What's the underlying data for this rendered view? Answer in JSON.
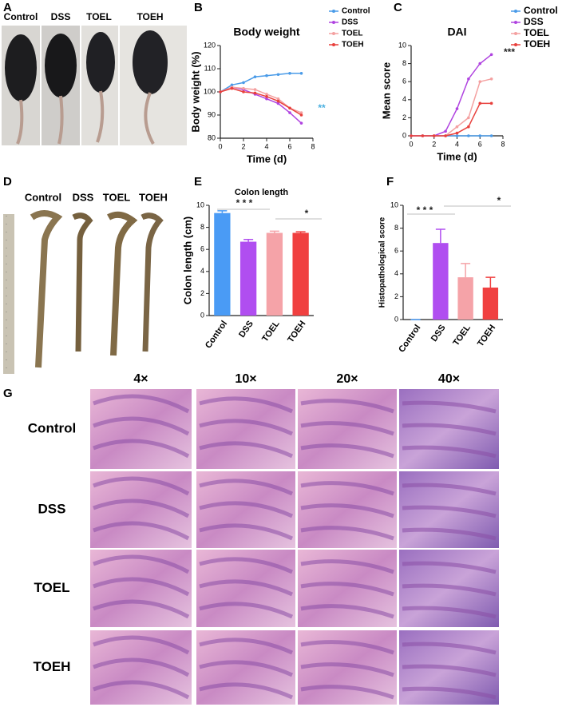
{
  "panel_labels": [
    "A",
    "B",
    "C",
    "D",
    "E",
    "F",
    "G"
  ],
  "panel_a": {
    "labels": [
      "Control",
      "DSS",
      "TOEL",
      "TOEH"
    ]
  },
  "panel_d": {
    "labels": [
      "Control",
      "DSS",
      "TOEL",
      "TOEH"
    ]
  },
  "panel_g": {
    "columns": [
      "4×",
      "10×",
      "20×",
      "40×"
    ],
    "rows": [
      "Control",
      "DSS",
      "TOEL",
      "TOEH"
    ]
  },
  "chart_data": [
    {
      "type": "line",
      "title": "Body weight",
      "x_label": "Time (d)",
      "y_label": "Body weight (%)",
      "x": [
        0,
        1,
        2,
        3,
        4,
        5,
        6,
        7
      ],
      "series": [
        {
          "name": "Control",
          "color": "#4a9be8",
          "values": [
            100,
            103,
            104,
            106.5,
            107,
            107.5,
            108,
            108
          ]
        },
        {
          "name": "DSS",
          "color": "#b044e0",
          "values": [
            100,
            102,
            101,
            99,
            97,
            95,
            91,
            86.5
          ]
        },
        {
          "name": "TOEL",
          "color": "#f4a0a0",
          "values": [
            100,
            102,
            101.5,
            101,
            99,
            97,
            93,
            91
          ]
        },
        {
          "name": "TOEH",
          "color": "#e8403c",
          "values": [
            100,
            101.5,
            100,
            99.5,
            98,
            96,
            93,
            90
          ]
        }
      ],
      "xlim": [
        0,
        8
      ],
      "xticks": [
        0,
        2,
        4,
        6,
        8
      ],
      "ylim": [
        80,
        120
      ],
      "yticks": [
        80,
        90,
        100,
        110,
        120
      ],
      "annotations": [
        "**"
      ]
    },
    {
      "type": "line",
      "title": "DAI",
      "x_label": "Time (d)",
      "y_label": "Mean score",
      "x": [
        0,
        1,
        2,
        3,
        4,
        5,
        6,
        7
      ],
      "series": [
        {
          "name": "Control",
          "color": "#4a9be8",
          "values": [
            0,
            0,
            0,
            0,
            0,
            0,
            0,
            0
          ]
        },
        {
          "name": "DSS",
          "color": "#b044e0",
          "values": [
            0,
            0,
            0,
            0.5,
            3,
            6.3,
            8,
            9
          ]
        },
        {
          "name": "TOEL",
          "color": "#f4a0a0",
          "values": [
            0,
            0,
            0,
            0,
            1,
            2,
            6,
            6.3
          ]
        },
        {
          "name": "TOEH",
          "color": "#e8403c",
          "values": [
            0,
            0,
            0,
            0,
            0.3,
            1,
            3.6,
            3.6
          ]
        }
      ],
      "xlim": [
        0,
        8
      ],
      "xticks": [
        0,
        2,
        4,
        6,
        8
      ],
      "ylim": [
        0,
        10
      ],
      "yticks": [
        0,
        2,
        4,
        6,
        8,
        10
      ],
      "annotations": [
        "***"
      ]
    },
    {
      "type": "bar",
      "title": "Colon length",
      "y_label": "Colon length (cm)",
      "categories": [
        "Control",
        "DSS",
        "TOEL",
        "TOEH"
      ],
      "values": [
        9.3,
        6.7,
        7.5,
        7.5
      ],
      "errors": [
        0.2,
        0.2,
        0.15,
        0.1
      ],
      "colors": [
        "#4a9bf5",
        "#b04ef0",
        "#f5a3a8",
        "#f04040"
      ],
      "ylim": [
        0,
        10
      ],
      "yticks": [
        0,
        2,
        4,
        6,
        8,
        10
      ],
      "annotations": [
        "* * *",
        "*"
      ]
    },
    {
      "type": "bar",
      "y_label": "Histopathological score",
      "categories": [
        "Control",
        "DSS",
        "TOEL",
        "TOEH"
      ],
      "values": [
        0,
        6.7,
        3.7,
        2.8
      ],
      "errors": [
        0,
        1.2,
        1.2,
        0.9
      ],
      "colors": [
        "#4a9bf5",
        "#b04ef0",
        "#f5a3a8",
        "#f04040"
      ],
      "ylim": [
        0,
        10
      ],
      "yticks": [
        0,
        2,
        4,
        6,
        8,
        10
      ],
      "annotations": [
        "* * *",
        "*"
      ]
    }
  ]
}
